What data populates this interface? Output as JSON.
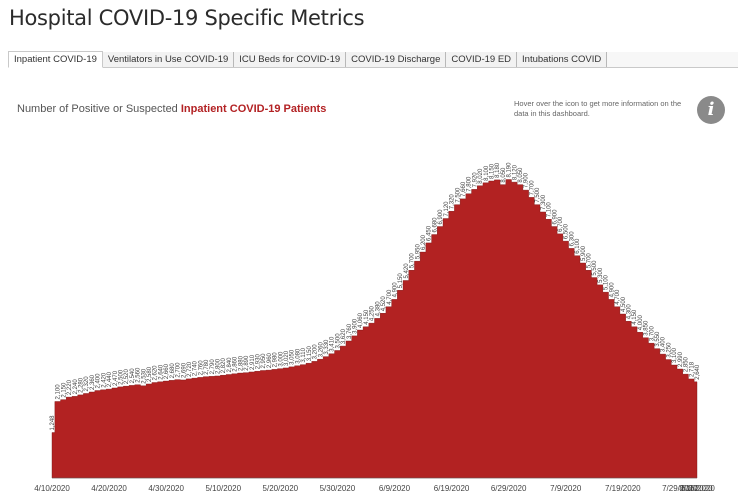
{
  "page": {
    "title": "Hospital COVID-19 Specific Metrics"
  },
  "tabs": [
    {
      "label": "Inpatient COVID-19",
      "active": true
    },
    {
      "label": "Ventilators in Use COVID-19",
      "active": false
    },
    {
      "label": "ICU Beds for COVID-19",
      "active": false
    },
    {
      "label": "COVID-19 Discharge",
      "active": false
    },
    {
      "label": "COVID-19 ED",
      "active": false
    },
    {
      "label": "Intubations COVID",
      "active": false
    }
  ],
  "subtitle": {
    "prefix": "Number of Positive or Suspected ",
    "highlight": "Inpatient COVID-19 Patients"
  },
  "info": {
    "hint": "Hover over the icon to get more information on the data in this dashboard.",
    "icon_label": "i",
    "icon": "info-icon"
  },
  "colors": {
    "area": "#b22222",
    "accent": "#b32224"
  },
  "chart_data": {
    "type": "area",
    "title": "Number of Positive or Suspected Inpatient COVID-19 Patients",
    "xlabel": "",
    "ylabel": "",
    "start_date": "4/10/2020",
    "x_tick_labels": [
      "4/10/2020",
      "4/20/2020",
      "4/30/2020",
      "5/10/2020",
      "5/20/2020",
      "5/30/2020",
      "6/9/2020",
      "6/19/2020",
      "6/29/2020",
      "7/9/2020",
      "7/19/2020",
      "7/29/2020",
      "8/8/2020",
      "8/18/2020"
    ],
    "ylim": [
      0,
      9000
    ],
    "grid": false,
    "values": [
      1248,
      2100,
      2150,
      2220,
      2240,
      2280,
      2320,
      2360,
      2400,
      2420,
      2440,
      2470,
      2500,
      2520,
      2540,
      2560,
      2530,
      2580,
      2620,
      2640,
      2660,
      2680,
      2700,
      2690,
      2720,
      2740,
      2760,
      2780,
      2790,
      2800,
      2820,
      2840,
      2860,
      2880,
      2890,
      2910,
      2930,
      2950,
      2960,
      2980,
      3000,
      3020,
      3050,
      3080,
      3110,
      3150,
      3200,
      3260,
      3330,
      3410,
      3500,
      3620,
      3760,
      3900,
      4060,
      4150,
      4250,
      4380,
      4520,
      4700,
      4900,
      5150,
      5420,
      5700,
      5950,
      6200,
      6450,
      6680,
      6900,
      7120,
      7320,
      7500,
      7660,
      7800,
      7920,
      8020,
      8100,
      8150,
      8180,
      8050,
      8190,
      8120,
      8050,
      7900,
      7700,
      7500,
      7300,
      7100,
      6900,
      6700,
      6500,
      6300,
      6100,
      5900,
      5700,
      5500,
      5300,
      5100,
      4900,
      4700,
      4500,
      4300,
      4150,
      4000,
      3850,
      3700,
      3550,
      3400,
      3250,
      3100,
      2990,
      2850,
      2718,
      2640
    ]
  }
}
